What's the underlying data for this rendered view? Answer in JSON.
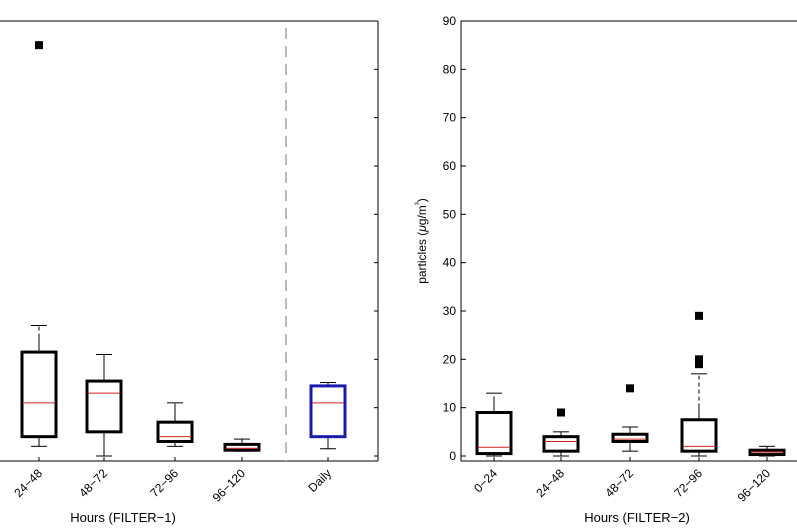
{
  "chart_data": [
    {
      "type": "boxplot",
      "xlabel": "Hours (FILTER−1)",
      "ylabel": "",
      "ylim": [
        0,
        90
      ],
      "categories": [
        "24−48",
        "48−72",
        "72−96",
        "96−120",
        "Daily"
      ],
      "boxes": [
        {
          "label": "24−48",
          "whisker_low": 2,
          "q1": 4,
          "median": 11,
          "q3": 21.5,
          "whisker_high": 24.5,
          "cap_high": 27,
          "outliers": [
            85
          ]
        },
        {
          "label": "48−72",
          "whisker_low": 0,
          "q1": 5,
          "median": 13,
          "q3": 15.5,
          "whisker_high": 21,
          "cap_high": 21,
          "outliers": []
        },
        {
          "label": "72−96",
          "whisker_low": 2,
          "q1": 3,
          "median": 4,
          "q3": 7,
          "whisker_high": 10,
          "cap_high": 11,
          "outliers": []
        },
        {
          "label": "96−120",
          "whisker_low": 1,
          "q1": 1.2,
          "median": 1.6,
          "q3": 2.4,
          "whisker_high": 3.5,
          "cap_high": 3.5,
          "outliers": []
        },
        {
          "label": "Daily",
          "whisker_low": 1.5,
          "q1": 4,
          "median": 11,
          "q3": 14.5,
          "whisker_high": 15.2,
          "cap_high": 15.2,
          "outliers": [],
          "color": "#1a1aaa"
        }
      ],
      "separator_after": "96−120"
    },
    {
      "type": "boxplot",
      "xlabel": "Hours (FILTER−2)",
      "ylabel": "particles (μg/m³)",
      "ylim": [
        0,
        90
      ],
      "yticks": [
        "0",
        "10",
        "20",
        "30",
        "40",
        "50",
        "60",
        "70",
        "80",
        "90"
      ],
      "categories": [
        "0−24",
        "24−48",
        "48−72",
        "72−96",
        "96−120"
      ],
      "boxes": [
        {
          "label": "0−24",
          "whisker_low": 0,
          "q1": 0.5,
          "median": 1.8,
          "q3": 9,
          "whisker_high": 11.5,
          "cap_high": 13,
          "outliers": []
        },
        {
          "label": "24−48",
          "whisker_low": 0,
          "q1": 1,
          "median": 3,
          "q3": 4,
          "whisker_high": 5,
          "cap_high": 5,
          "outliers": [
            9
          ]
        },
        {
          "label": "48−72",
          "whisker_low": 1,
          "q1": 3,
          "median": 3.5,
          "q3": 4.5,
          "whisker_high": 6,
          "cap_high": 6,
          "outliers": [
            14
          ]
        },
        {
          "label": "72−96",
          "whisker_low": 0,
          "q1": 1,
          "median": 2,
          "q3": 7.5,
          "whisker_high": 10,
          "cap_high": 17,
          "outliers": [
            29,
            20,
            19
          ]
        },
        {
          "label": "96−120",
          "whisker_low": 0,
          "q1": 0.3,
          "median": 0.8,
          "q3": 1.2,
          "whisker_high": 2,
          "cap_high": 2,
          "outliers": []
        }
      ]
    }
  ],
  "colors": {
    "box": "#000000",
    "median": "#d0221b",
    "daily_box": "#1a1aaa",
    "separator": "#bbbbbb"
  }
}
